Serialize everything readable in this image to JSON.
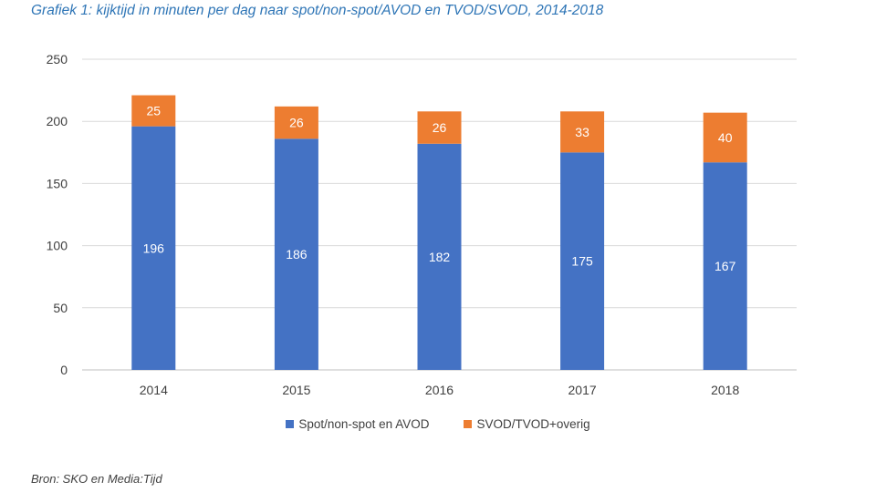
{
  "title": "Grafiek  1: kijktijd in minuten per dag naar spot/non-spot/AVOD en TVOD/SVOD, 2014-2018",
  "source": "Bron: SKO en Media:Tijd",
  "chart_data": {
    "type": "bar",
    "stacked": true,
    "categories": [
      "2014",
      "2015",
      "2016",
      "2017",
      "2018"
    ],
    "series": [
      {
        "name": "Spot/non-spot en AVOD",
        "values": [
          196,
          186,
          182,
          175,
          167
        ],
        "color": "#4472c4"
      },
      {
        "name": "SVOD/TVOD+overig",
        "values": [
          25,
          26,
          26,
          33,
          40
        ],
        "color": "#ed7d31"
      }
    ],
    "ylim": [
      0,
      250
    ],
    "yticks": [
      0,
      50,
      100,
      150,
      200,
      250
    ],
    "grid": true,
    "data_labels": true,
    "legend_position": "bottom"
  }
}
